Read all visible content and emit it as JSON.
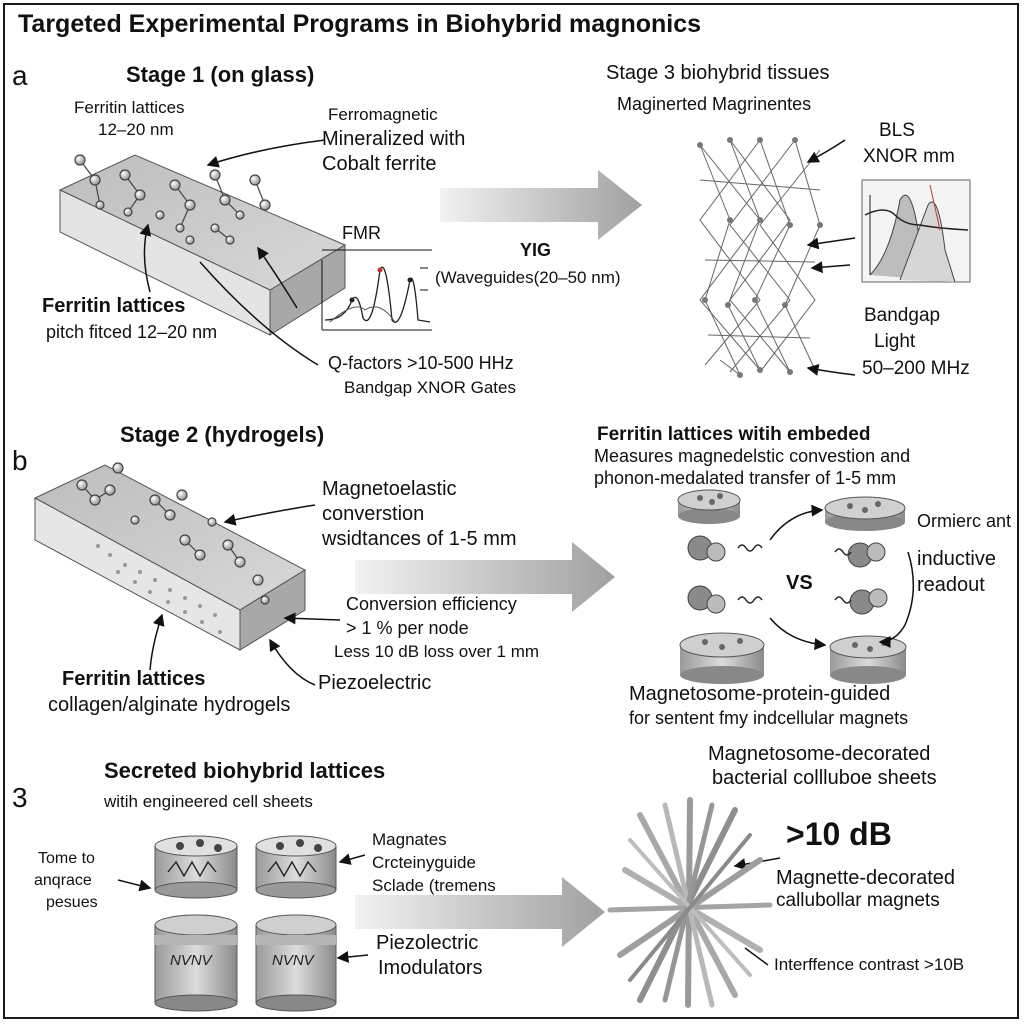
{
  "title": "Targeted Experimental Programs in Biohybrid magnonics",
  "panel_a": {
    "letter": "a",
    "stage1_title": "Stage 1 (on glass)",
    "ferritin_top": "Ferritin lattices",
    "ferritin_top_range": "12–20 nm",
    "ferro_line1": "Ferromagnetic",
    "ferro_line2": "Mineralized with",
    "ferro_line3": "Cobalt ferrite",
    "ferritin_bold": "Ferritin lattices",
    "pitch": "pitch fitced 12–20 nm",
    "fmr": "FMR",
    "yig": "YIG",
    "waveguides": "(Waveguides(20–50 nm)",
    "qfactors": "Q-factors  >10-500 HHz",
    "bandgap_xnor": "Bandgap XNOR Gates",
    "stage3_title": "Stage 3 biohybrid tissues",
    "stage3_sub": "Maginerted Magrinentes",
    "bls": "BLS",
    "xnor_mm": "XNOR mm",
    "bandgap": "Bandgap",
    "light": "Light",
    "mhz": "50–200 MHz"
  },
  "panel_b": {
    "letter": "b",
    "stage2_title": "Stage 2 (hydrogels)",
    "magneto_line1": "Magnetoelastic",
    "magneto_line2": "converstion",
    "magneto_line3": "wsidtances of 1-5 mm",
    "conv_eff": "Conversion efficiency",
    "per_node": "> 1 % per node",
    "less_loss": "Less 10 dB loss over 1 mm",
    "piezo": "Piezoelectric",
    "ferritin_bold": "Ferritin lattices",
    "collagen": "collagen/alginate hydrogels",
    "right_title": "Ferritin lattices witih embeded",
    "right_line2": "Measures magnedelstic convestion and",
    "right_line3": "phonon-medalated transfer of 1-5 mm",
    "orm": "Ormierc ant",
    "vs": "VS",
    "inductive1": "inductive",
    "inductive2": "readout",
    "magneto_caption1": "Magnetosome-protein-guided",
    "magneto_caption2": "for sentent fmy indcellular magnets"
  },
  "panel_c": {
    "letter": "3",
    "secreted_title": "Secreted biohybrid lattices",
    "secreted_sub": "witih engineered cell sheets",
    "tome1": "Tome to",
    "tome2": "anqrace",
    "tome3": "pesues",
    "magnates1": "Magnates",
    "magnates2": "Crcteinyguide",
    "magnates3": "Sclade (tremens",
    "piezo1": "Piezolectric",
    "piezo2": "Imodulators",
    "mag_sheets1": "Magnetosome-decorated",
    "mag_sheets2": "bacterial collluboe sheets",
    "db": ">10 dB",
    "magnette1": "Magnette-decorated",
    "magnette2": "callubollar magnets",
    "interf": "Interffence contrast >10B",
    "cyl_text": "NVNV"
  },
  "colors": {
    "arrow": "#a9a9a9",
    "slab": "#c8c8c8",
    "ink": "#111111"
  }
}
